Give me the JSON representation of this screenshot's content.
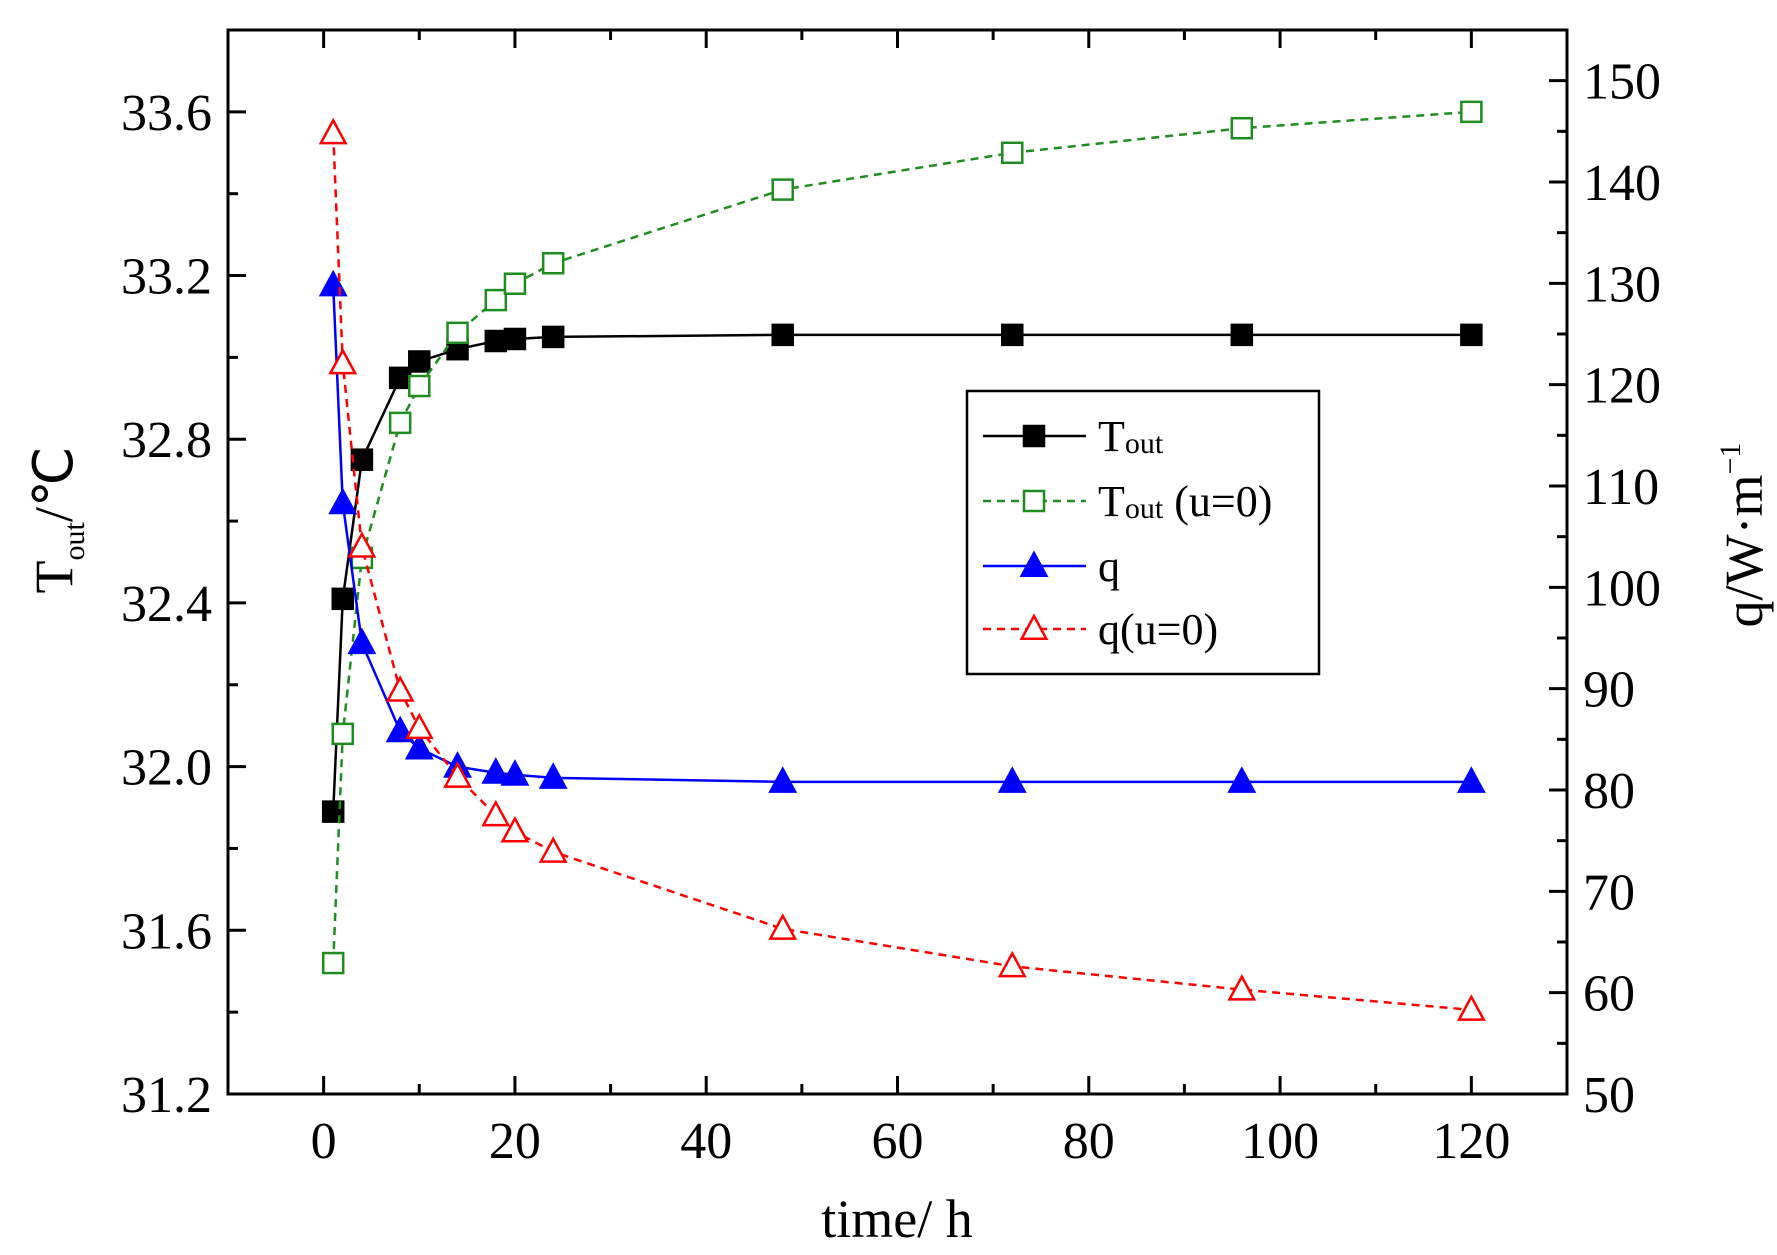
{
  "chart_data": {
    "type": "line",
    "x_label": "time/ h",
    "y_left_label": {
      "main": "T",
      "sub": "out",
      "unit": "/℃"
    },
    "y_right_label": {
      "main": "q/W·m",
      "sup": "−1"
    },
    "x_range": [
      -10,
      130
    ],
    "y_left_range": [
      31.2,
      33.8
    ],
    "y_right_range": [
      50,
      155
    ],
    "x_ticks": [
      0,
      20,
      40,
      60,
      80,
      100,
      120
    ],
    "x_tick_labels": [
      "0",
      "20",
      "40",
      "60",
      "80",
      "100",
      "120"
    ],
    "y_left_ticks": [
      31.2,
      31.6,
      32.0,
      32.4,
      32.8,
      33.2,
      33.6
    ],
    "y_left_tick_labels": [
      "31.2",
      "31.6",
      "32.0",
      "32.4",
      "32.8",
      "33.2",
      "33.6"
    ],
    "y_right_ticks": [
      50,
      60,
      70,
      80,
      90,
      100,
      110,
      120,
      130,
      140,
      150
    ],
    "y_right_tick_labels": [
      "50",
      "60",
      "70",
      "80",
      "90",
      "100",
      "110",
      "120",
      "130",
      "140",
      "150"
    ],
    "series": [
      {
        "name": "Tout",
        "legend_main": "T",
        "legend_sub": "out",
        "legend_suffix": "",
        "axis": "left",
        "color": "#000000",
        "dashed": false,
        "marker": "square",
        "filled": true,
        "x": [
          1,
          2,
          4,
          8,
          10,
          14,
          18,
          20,
          24,
          48,
          72,
          96,
          120
        ],
        "y": [
          31.89,
          32.41,
          32.75,
          32.95,
          32.99,
          33.02,
          33.04,
          33.045,
          33.05,
          33.055,
          33.055,
          33.055,
          33.055
        ]
      },
      {
        "name": "Tout (u=0)",
        "legend_main": "T",
        "legend_sub": "out",
        "legend_suffix": " (u=0)",
        "axis": "left",
        "color": "#1f8c1f",
        "dashed": true,
        "marker": "square",
        "filled": false,
        "x": [
          1,
          2,
          4,
          8,
          10,
          14,
          18,
          20,
          24,
          48,
          72,
          96,
          120
        ],
        "y": [
          31.52,
          32.08,
          32.51,
          32.84,
          32.93,
          33.06,
          33.14,
          33.18,
          33.23,
          33.41,
          33.5,
          33.56,
          33.6
        ]
      },
      {
        "name": "q",
        "legend_main": "q",
        "legend_sub": "",
        "legend_suffix": "",
        "axis": "right",
        "color": "#0000ff",
        "dashed": false,
        "marker": "triangle",
        "filled": true,
        "x": [
          1,
          2,
          4,
          8,
          10,
          14,
          18,
          20,
          24,
          48,
          72,
          96,
          120
        ],
        "y": [
          129.8,
          108.3,
          94.5,
          85.8,
          84.1,
          82.3,
          81.7,
          81.5,
          81.2,
          80.8,
          80.8,
          80.8,
          80.8
        ]
      },
      {
        "name": "q(u=0)",
        "legend_main": "q",
        "legend_sub": "",
        "legend_suffix": "(u=0)",
        "axis": "right",
        "color": "#ff0000",
        "dashed": true,
        "marker": "triangle",
        "filled": false,
        "x": [
          1,
          2,
          4,
          8,
          10,
          14,
          18,
          20,
          24,
          48,
          72,
          96,
          120
        ],
        "y": [
          144.8,
          122.1,
          104.0,
          89.8,
          86.1,
          81.3,
          77.5,
          75.9,
          73.9,
          66.3,
          62.6,
          60.3,
          58.3
        ]
      }
    ]
  }
}
